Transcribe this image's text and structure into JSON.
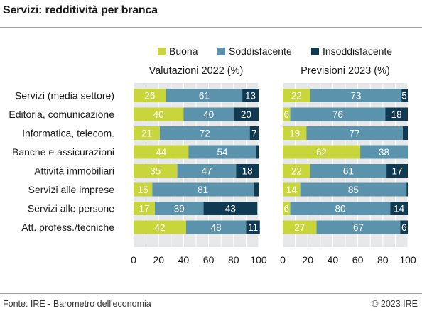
{
  "title": "Servizi: redditività per branca",
  "footer": {
    "source": "Fonte: IRE - Barometro dell'economia",
    "copyright": "© 2023 IRE"
  },
  "chart_data": {
    "type": "bar",
    "orientation": "horizontal",
    "stacked": true,
    "categories": [
      "Servizi (media settore)",
      "Editoria, comunicazione",
      "Informatica, telecom.",
      "Banche e assicurazioni",
      "Attività immobiliari",
      "Servizi alle imprese",
      "Servizi alle persone",
      "Att. profess./tecniche"
    ],
    "legend": {
      "placement": "top-right",
      "items": [
        "Buona",
        "Soddisfacente",
        "Insoddisfacente"
      ]
    },
    "colors": {
      "Buona": "#c8d63c",
      "Soddisfacente": "#5b93ad",
      "Insoddisfacente": "#0f3a52"
    },
    "xlim": [
      0,
      100
    ],
    "x_ticks": [
      "0",
      "20",
      "40",
      "60",
      "80",
      "100"
    ],
    "panels": [
      {
        "title": "Valutazioni 2022 (%)",
        "series": [
          {
            "name": "Buona",
            "values": [
              26,
              40,
              21,
              44,
              35,
              15,
              17,
              42
            ]
          },
          {
            "name": "Soddisfacente",
            "values": [
              61,
              40,
              72,
              54,
              47,
              81,
              39,
              48
            ]
          },
          {
            "name": "Insoddisfacente",
            "values": [
              13,
              20,
              7,
              2,
              18,
              4,
              43,
              11
            ]
          }
        ],
        "labels": [
          [
            "26",
            "61",
            "13"
          ],
          [
            "40",
            "40",
            "20"
          ],
          [
            "21",
            "72",
            "7"
          ],
          [
            "44",
            "54",
            ""
          ],
          [
            "35",
            "47",
            "18"
          ],
          [
            "15",
            "81",
            ""
          ],
          [
            "17",
            "39",
            "43"
          ],
          [
            "42",
            "48",
            "11"
          ]
        ]
      },
      {
        "title": "Previsioni 2023 (%)",
        "series": [
          {
            "name": "Buona",
            "values": [
              22,
              6,
              19,
              62,
              22,
              14,
              6,
              27
            ]
          },
          {
            "name": "Soddisfacente",
            "values": [
              73,
              76,
              77,
              38,
              61,
              85,
              80,
              67
            ]
          },
          {
            "name": "Insoddisfacente",
            "values": [
              5,
              18,
              4,
              0,
              17,
              1,
              14,
              6
            ]
          }
        ],
        "labels": [
          [
            "22",
            "73",
            "5"
          ],
          [
            "6",
            "76",
            "18"
          ],
          [
            "19",
            "77",
            ""
          ],
          [
            "62",
            "38",
            ""
          ],
          [
            "22",
            "61",
            "17"
          ],
          [
            "14",
            "85",
            ""
          ],
          [
            "6",
            "80",
            "14"
          ],
          [
            "27",
            "67",
            "6"
          ]
        ]
      }
    ]
  }
}
